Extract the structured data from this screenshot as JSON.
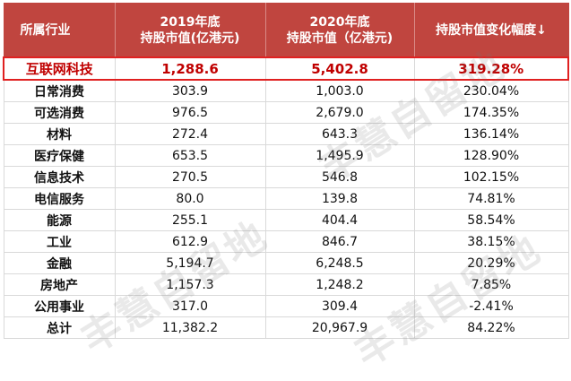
{
  "table": {
    "headers": [
      "所属行业",
      "2019年底\n持股市值(亿港元)",
      "2020年底\n持股市值（亿港元)",
      "持股市值变化幅度↓"
    ],
    "rows": [
      [
        "互联网科技",
        "1,288.6",
        "5,402.8",
        "319.28%"
      ],
      [
        "日常消费",
        "303.9",
        "1,003.0",
        "230.04%"
      ],
      [
        "可选消费",
        "976.5",
        "2,679.0",
        "174.35%"
      ],
      [
        "材料",
        "272.4",
        "643.3",
        "136.14%"
      ],
      [
        "医疗保健",
        "653.5",
        "1,495.9",
        "128.90%"
      ],
      [
        "信息技术",
        "270.5",
        "546.8",
        "102.15%"
      ],
      [
        "电信服务",
        "80.0",
        "139.8",
        "74.81%"
      ],
      [
        "能源",
        "255.1",
        "404.4",
        "58.54%"
      ],
      [
        "工业",
        "612.9",
        "846.7",
        "38.15%"
      ],
      [
        "金融",
        "5,194.7",
        "6,248.5",
        "20.29%"
      ],
      [
        "房地产",
        "1,157.3",
        "1,248.2",
        "7.85%"
      ],
      [
        "公用事业",
        "317.0",
        "309.4",
        "-2.41%"
      ],
      [
        "总计",
        "11,382.2",
        "20,967.9",
        "84.22%"
      ]
    ],
    "highlight_row": 0
  },
  "watermark": "丰慧自留地",
  "colors": {
    "header_bg": "#c0453f",
    "highlight_text": "#c00000",
    "highlight_border": "#e02020"
  }
}
